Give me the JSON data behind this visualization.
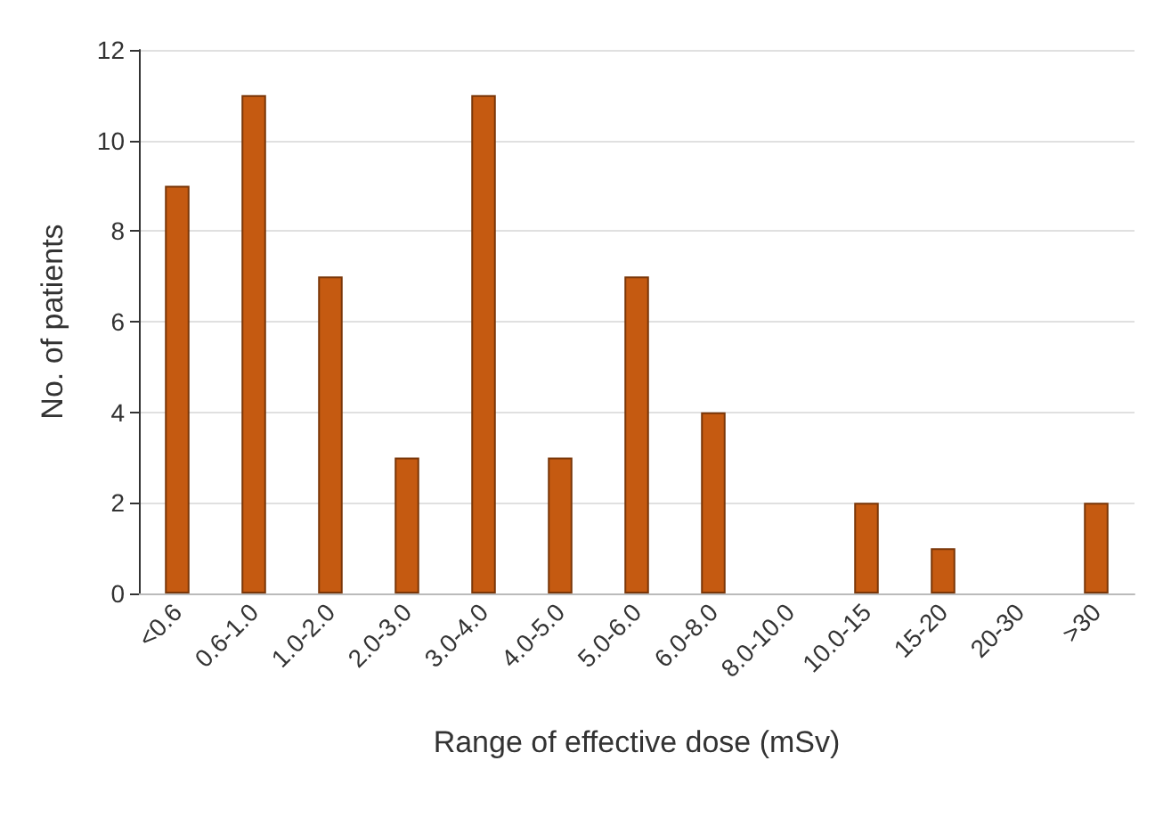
{
  "chart_data": {
    "type": "bar",
    "xlabel": "Range of effective dose (mSv)",
    "ylabel": "No. of patients",
    "categories": [
      "<0.6",
      "0.6-1.0",
      "1.0-2.0",
      "2.0-3.0",
      "3.0-4.0",
      "4.0-5.0",
      "5.0-6.0",
      "6.0-8.0",
      "8.0-10.0",
      "10.0-15",
      "15-20",
      "20-30",
      ">30"
    ],
    "values": [
      9,
      11,
      7,
      3,
      11,
      3,
      7,
      4,
      0,
      2,
      1,
      0,
      2
    ],
    "color": "#c55a11",
    "ylim": [
      0,
      12
    ],
    "yticks": [
      0,
      2,
      4,
      6,
      8,
      10,
      12
    ],
    "grid": "y"
  }
}
